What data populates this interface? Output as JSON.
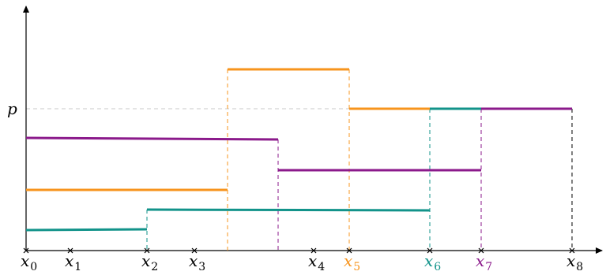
{
  "colors": {
    "orange": "#f7941d",
    "teal": "#12938a",
    "purple": "#8b1a8b",
    "black": "#000000",
    "gray": "#b0b0b0"
  },
  "labels": {
    "p": "p",
    "x_letter": "x",
    "subs": [
      "0",
      "1",
      "2",
      "3",
      "4",
      "5",
      "6",
      "7",
      "8"
    ]
  },
  "tick_label_colors": [
    "black",
    "black",
    "black",
    "black",
    "black",
    "orange",
    "teal",
    "purple",
    "black"
  ]
}
